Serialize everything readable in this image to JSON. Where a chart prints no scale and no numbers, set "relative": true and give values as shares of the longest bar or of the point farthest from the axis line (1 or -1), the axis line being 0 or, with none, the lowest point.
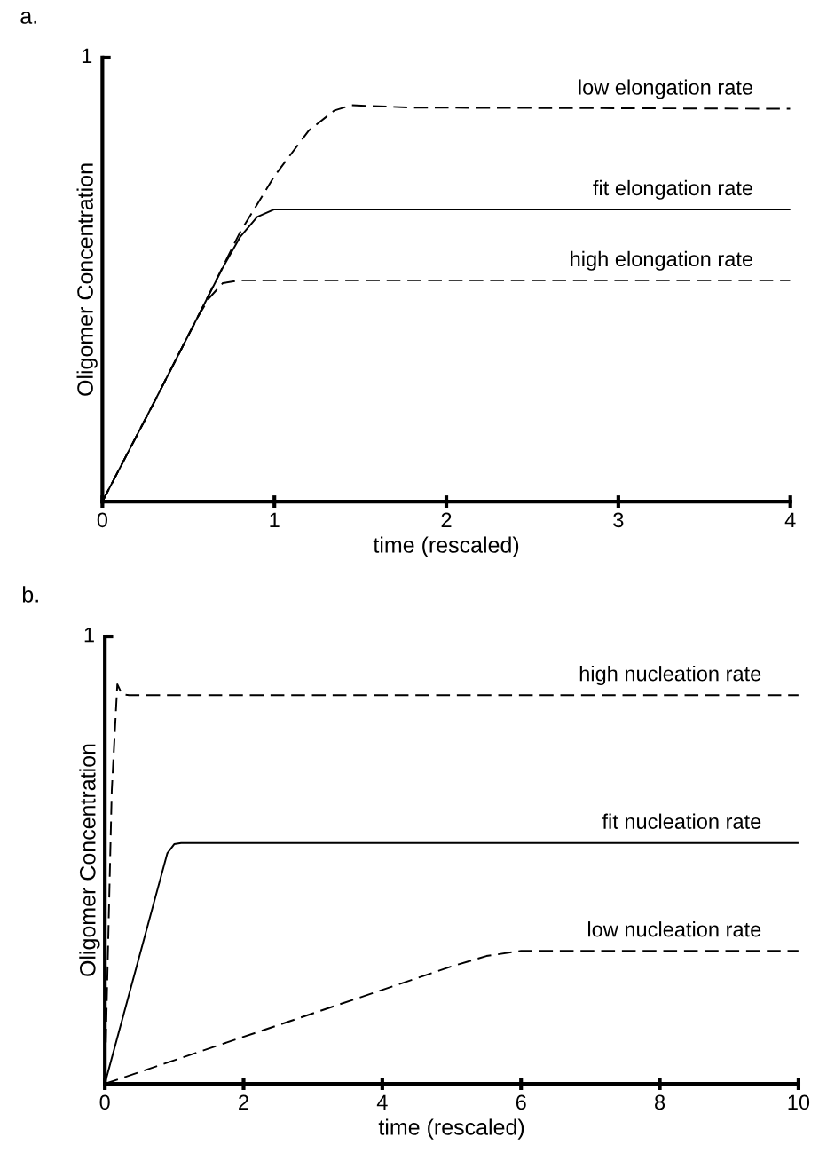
{
  "chart_data": [
    {
      "type": "line",
      "title": "a.",
      "xlabel": "time (rescaled)",
      "ylabel": "Oligomer Concentration",
      "xlim": [
        0,
        4
      ],
      "xticks": [
        0,
        1,
        2,
        3,
        4
      ],
      "relative": true,
      "legend": false,
      "marker": "none",
      "annotations": [
        "1"
      ],
      "series": [
        {
          "name": "low elongation rate",
          "color": "#000000",
          "line_style": "dashed",
          "x": [
            0,
            0.3,
            0.55,
            0.8,
            1.0,
            1.2,
            1.35,
            1.45,
            1.8,
            4
          ],
          "values": [
            0,
            0.25,
            0.462,
            0.679,
            0.821,
            0.936,
            0.987,
            1,
            0.994,
            0.991
          ]
        },
        {
          "name": "fit elongation rate",
          "color": "#000000",
          "line_style": "solid",
          "x": [
            0,
            0.3,
            0.55,
            0.7,
            0.8,
            0.9,
            1.0,
            1.2,
            4
          ],
          "values": [
            0,
            0.25,
            0.462,
            0.59,
            0.667,
            0.718,
            0.737,
            0.737,
            0.737
          ]
        },
        {
          "name": "high elongation rate",
          "color": "#000000",
          "line_style": "dashed",
          "x": [
            0,
            0.3,
            0.55,
            0.62,
            0.7,
            0.8,
            4
          ],
          "values": [
            0,
            0.25,
            0.462,
            0.513,
            0.551,
            0.558,
            0.558
          ]
        }
      ]
    },
    {
      "type": "line",
      "title": "b.",
      "xlabel": "time (rescaled)",
      "ylabel": "Oligomer Concentration",
      "xlim": [
        0,
        10
      ],
      "xticks": [
        0,
        2,
        4,
        6,
        8,
        10
      ],
      "relative": true,
      "legend": false,
      "marker": "none",
      "annotations": [
        "1"
      ],
      "series": [
        {
          "name": "high nucleation rate",
          "color": "#000000",
          "line_style": "dashed",
          "x": [
            0,
            0.1,
            0.18,
            0.25,
            0.35,
            10
          ],
          "values": [
            0,
            0.734,
            1,
            0.975,
            0.973,
            0.973
          ]
        },
        {
          "name": "fit nucleation rate",
          "color": "#000000",
          "line_style": "solid",
          "x": [
            0,
            0.9,
            1.0,
            1.1,
            10
          ],
          "values": [
            0,
            0.577,
            0.6,
            0.603,
            0.603
          ]
        },
        {
          "name": "low nucleation rate",
          "color": "#000000",
          "line_style": "dashed",
          "x": [
            0,
            5,
            5.5,
            6,
            10
          ],
          "values": [
            0,
            0.294,
            0.32,
            0.333,
            0.333
          ]
        }
      ]
    }
  ]
}
